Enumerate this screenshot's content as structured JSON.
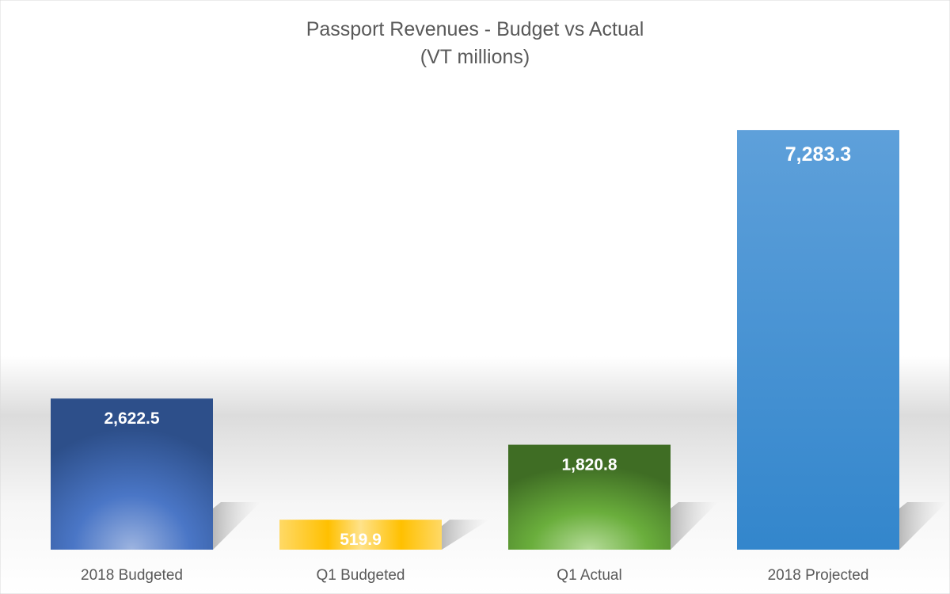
{
  "chart_data": {
    "type": "bar",
    "title": "Passport Revenues - Budget vs Actual",
    "subtitle": "(VT millions)",
    "xlabel": "",
    "ylabel": "",
    "ylim": [
      0,
      8000
    ],
    "grid": false,
    "legend": "none",
    "categories": [
      "2018 Budgeted",
      "Q1 Budgeted",
      "Q1 Actual",
      "2018 Projected"
    ],
    "values": [
      2622.5,
      519.9,
      1820.8,
      7283.3
    ],
    "data_labels": [
      "2,622.5",
      "519.9",
      "1,820.8",
      "7,283.3"
    ],
    "colors": [
      "#4472C4",
      "#FFC000",
      "#70AD47",
      "#5B9BD5"
    ]
  }
}
